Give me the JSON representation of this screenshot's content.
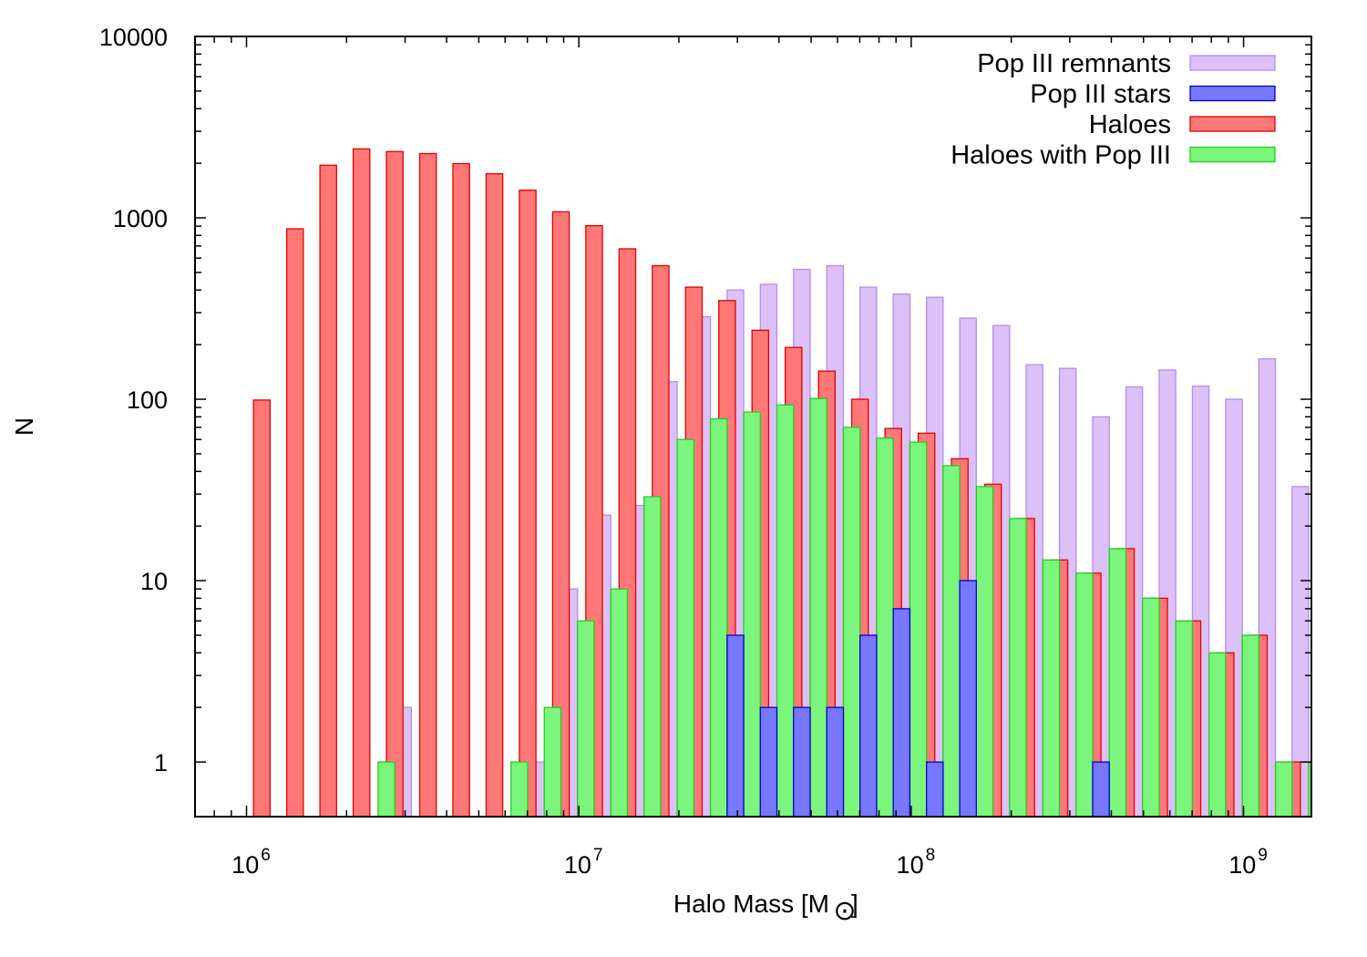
{
  "chart_data": {
    "type": "bar",
    "xlabel": "Halo Mass [M",
    "xlabel_symbol": "⊙",
    "xlabel_suffix": "]",
    "ylabel": "N",
    "x_scale": "log",
    "y_scale": "log",
    "xlim": [
      700000,
      1600000000
    ],
    "ylim": [
      0.5,
      10000
    ],
    "x_ticks": [
      {
        "base": "10",
        "exp": "6",
        "value": 1000000
      },
      {
        "base": "10",
        "exp": "7",
        "value": 10000000
      },
      {
        "base": "10",
        "exp": "8",
        "value": 100000000
      },
      {
        "base": "10",
        "exp": "9",
        "value": 1000000000
      }
    ],
    "y_ticks": [
      {
        "label": "1",
        "value": 1
      },
      {
        "label": "10",
        "value": 10
      },
      {
        "label": "100",
        "value": 100
      },
      {
        "label": "1000",
        "value": 1000
      },
      {
        "label": "10000",
        "value": 10000
      }
    ],
    "bins_log10": [
      6.046,
      6.146,
      6.246,
      6.346,
      6.446,
      6.546,
      6.646,
      6.746,
      6.846,
      6.946,
      7.046,
      7.146,
      7.246,
      7.346,
      7.446,
      7.546,
      7.646,
      7.746,
      7.846,
      7.946,
      8.046,
      8.146,
      8.246,
      8.346,
      8.446,
      8.546,
      8.646,
      8.746,
      8.846,
      8.946,
      9.046,
      9.146
    ],
    "grid": false,
    "legend_position": "top-right",
    "series": [
      {
        "name": "Pop III remnants",
        "fill": "#dcc0f8",
        "stroke": "#b28ee6",
        "offset": 0.5,
        "values": [
          0,
          0,
          0,
          0,
          2,
          0,
          0,
          0,
          1,
          9,
          23,
          26,
          125,
          285,
          400,
          430,
          520,
          545,
          415,
          380,
          365,
          280,
          255,
          155,
          148,
          80,
          117,
          145,
          118,
          100,
          167,
          33
        ]
      },
      {
        "name": "Pop III stars",
        "fill": "#7777ff",
        "stroke": "#0000cc",
        "offset": 0.5,
        "values": [
          0,
          0,
          0,
          0,
          0,
          0,
          0,
          0,
          0,
          0,
          0,
          0,
          0,
          0,
          5,
          2,
          2,
          2,
          5,
          7,
          1,
          10,
          0,
          0,
          0,
          1,
          0,
          0,
          0,
          0,
          0,
          0
        ]
      },
      {
        "name": "Haloes",
        "fill": "#ff7777",
        "stroke": "#e00000",
        "offset": 0,
        "values": [
          99,
          870,
          1950,
          2400,
          2320,
          2260,
          1990,
          1750,
          1420,
          1080,
          905,
          675,
          545,
          415,
          350,
          240,
          193,
          143,
          100,
          69,
          65,
          47,
          34,
          22,
          13,
          11,
          15,
          8,
          6,
          4,
          5,
          1
        ]
      },
      {
        "name": "Haloes with Pop III",
        "fill": "#7cf57c",
        "stroke": "#22cc22",
        "offset": -0.5,
        "values": [
          0,
          0,
          0,
          0,
          1,
          0,
          0,
          0,
          1,
          2,
          6,
          9,
          29,
          60,
          78,
          85,
          93,
          101,
          70,
          61,
          58,
          43,
          33,
          22,
          13,
          11,
          15,
          8,
          6,
          4,
          5,
          1
        ]
      }
    ],
    "extra_bars": [
      {
        "series": 3,
        "log10": 9.246,
        "value": 1
      }
    ]
  }
}
